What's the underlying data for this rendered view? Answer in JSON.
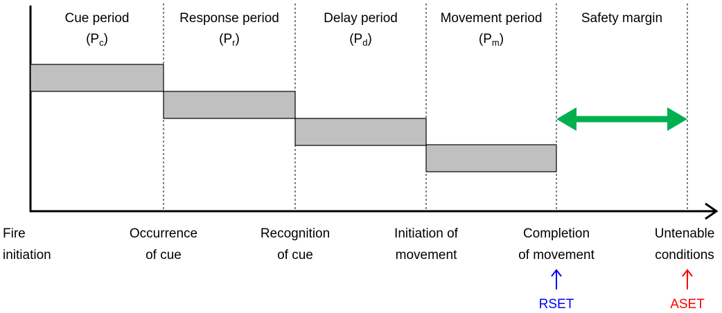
{
  "periods": [
    {
      "label": "Cue period",
      "symbol_prefix": "(P",
      "subscript": "c",
      "symbol_suffix": ")"
    },
    {
      "label": "Response period",
      "symbol_prefix": "(P",
      "subscript": "r",
      "symbol_suffix": ")"
    },
    {
      "label": "Delay period",
      "symbol_prefix": "(P",
      "subscript": "d",
      "symbol_suffix": ")"
    },
    {
      "label": "Movement period",
      "symbol_prefix": "(P",
      "subscript": "m",
      "symbol_suffix": ")"
    },
    {
      "label": "Safety margin"
    }
  ],
  "events": [
    {
      "lines": [
        "Fire",
        "initiation"
      ]
    },
    {
      "lines": [
        "Occurrence",
        "of cue"
      ]
    },
    {
      "lines": [
        "Recognition",
        "of cue"
      ]
    },
    {
      "lines": [
        "Initiation of",
        "movement"
      ]
    },
    {
      "lines": [
        "Completion",
        "of movement"
      ]
    },
    {
      "lines": [
        "Untenable",
        "conditions"
      ]
    }
  ],
  "markers": [
    {
      "label": "RSET",
      "event": 4,
      "color": "#0000ff"
    },
    {
      "label": "ASET",
      "event": 5,
      "color": "#ff0000"
    }
  ]
}
